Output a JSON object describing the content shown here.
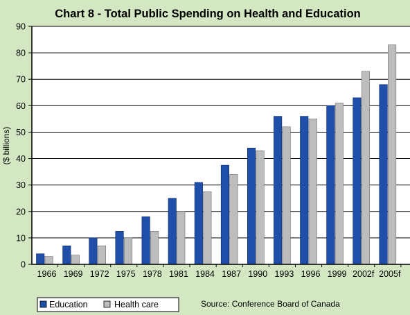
{
  "chart_data": {
    "type": "bar",
    "title": "Chart 8 - Total Public Spending on Health and Education",
    "ylabel": "($ billions)",
    "xlabel": "",
    "ylim": [
      0,
      90
    ],
    "yticks": [
      0,
      10,
      20,
      30,
      40,
      50,
      60,
      70,
      80,
      90
    ],
    "grid": true,
    "legend_position": "bottom-left",
    "categories": [
      "1966",
      "1969",
      "1972",
      "1975",
      "1978",
      "1981",
      "1984",
      "1987",
      "1990",
      "1993",
      "1996",
      "1999",
      "2002f",
      "2005f"
    ],
    "series": [
      {
        "name": "Education",
        "color": "#1f4fa8",
        "values": [
          4,
          7,
          10,
          12.5,
          18,
          25,
          31,
          37.5,
          44,
          56,
          56,
          60,
          63,
          68
        ]
      },
      {
        "name": "Health care",
        "color": "#bdbdbd",
        "values": [
          3,
          3.5,
          7,
          10,
          12.5,
          20,
          27.5,
          34,
          43,
          52,
          55,
          61,
          73,
          83
        ]
      }
    ]
  },
  "source": "Source: Conference Board of Canada",
  "colors": {
    "background": "#d3e7c3",
    "plot_background": "#ffffff",
    "gridline": "#000000"
  }
}
